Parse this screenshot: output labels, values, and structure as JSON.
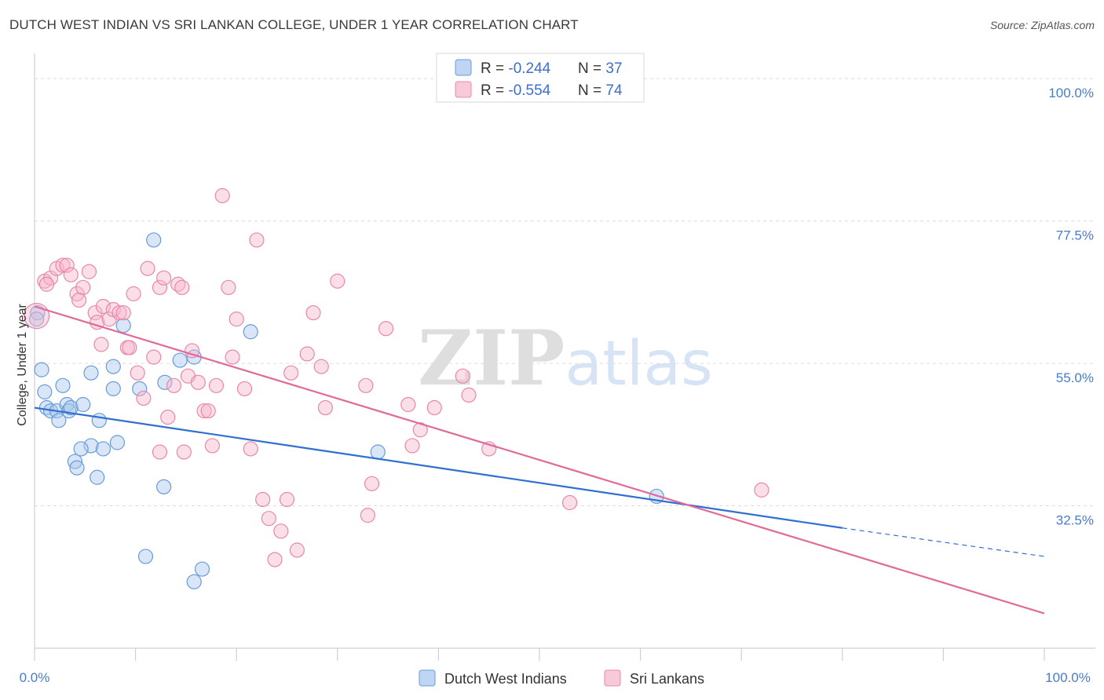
{
  "header": {
    "title": "DUTCH WEST INDIAN VS SRI LANKAN COLLEGE, UNDER 1 YEAR CORRELATION CHART",
    "source": "Source: ZipAtlas.com"
  },
  "chart_data": {
    "type": "scatter",
    "title": "DUTCH WEST INDIAN VS SRI LANKAN COLLEGE, UNDER 1 YEAR CORRELATION CHART",
    "xlabel": "",
    "ylabel": "College, Under 1 year",
    "xlim": [
      0,
      100
    ],
    "ylim": [
      10,
      102.5
    ],
    "x_tick_labels": [
      "0.0%",
      "100.0%"
    ],
    "y_ticks": [
      {
        "value": 100.0,
        "label": "100.0%"
      },
      {
        "value": 77.5,
        "label": "77.5%"
      },
      {
        "value": 55.0,
        "label": "55.0%"
      },
      {
        "value": 32.5,
        "label": "32.5%"
      }
    ],
    "grid": true,
    "watermark": "ZIPatlas",
    "legend_top": [
      {
        "r_label": "R = ",
        "r_value": "-0.244",
        "n_label": "N = ",
        "n_value": "37",
        "color": "#a8c8f0"
      },
      {
        "r_label": "R = ",
        "r_value": "-0.554",
        "n_label": "N = ",
        "n_value": "74",
        "color": "#f6b8cc"
      }
    ],
    "series": [
      {
        "name": "Dutch West Indians",
        "color": "#a8c8f0",
        "stroke": "#6a9bd8",
        "line_color": "#2f6fd0",
        "trend": {
          "x0": 0,
          "y0": 48.0,
          "x1": 80,
          "y1": 29.0,
          "dash_to_x": 100,
          "dash_to_y": 24.5
        },
        "points": [
          [
            0.3,
            63.0
          ],
          [
            0.7,
            54.0
          ],
          [
            1.0,
            50.5
          ],
          [
            1.2,
            48.0
          ],
          [
            1.6,
            47.5
          ],
          [
            2.2,
            47.5
          ],
          [
            2.4,
            46.0
          ],
          [
            2.8,
            51.5
          ],
          [
            3.2,
            48.5
          ],
          [
            3.4,
            47.5
          ],
          [
            3.6,
            48.0
          ],
          [
            4.8,
            48.5
          ],
          [
            5.6,
            53.5
          ],
          [
            6.4,
            46.0
          ],
          [
            5.6,
            42.0
          ],
          [
            4.6,
            41.5
          ],
          [
            6.8,
            41.5
          ],
          [
            8.2,
            42.5
          ],
          [
            4.0,
            39.5
          ],
          [
            4.2,
            38.5
          ],
          [
            6.2,
            37.0
          ],
          [
            7.8,
            51.0
          ],
          [
            7.8,
            54.5
          ],
          [
            8.8,
            61.0
          ],
          [
            10.4,
            51.0
          ],
          [
            11.8,
            74.5
          ],
          [
            12.9,
            52.0
          ],
          [
            14.4,
            55.5
          ],
          [
            15.8,
            56.0
          ],
          [
            21.4,
            60.0
          ],
          [
            12.8,
            35.5
          ],
          [
            11.0,
            24.5
          ],
          [
            16.6,
            22.5
          ],
          [
            15.8,
            20.5
          ],
          [
            34.0,
            41.0
          ],
          [
            61.6,
            34.0
          ],
          [
            0.2,
            62.0
          ]
        ]
      },
      {
        "name": "Sri Lankans",
        "color": "#f6b8cc",
        "stroke": "#e888a8",
        "line_color": "#e06a98",
        "trend": {
          "x0": 0,
          "y0": 64.0,
          "x1": 100,
          "y1": 15.5
        },
        "points": [
          [
            0.2,
            62.5
          ],
          [
            1.0,
            68.0
          ],
          [
            1.6,
            68.5
          ],
          [
            2.2,
            70.0
          ],
          [
            2.8,
            70.5
          ],
          [
            3.2,
            70.5
          ],
          [
            3.6,
            69.0
          ],
          [
            4.2,
            66.0
          ],
          [
            4.4,
            65.0
          ],
          [
            4.8,
            67.0
          ],
          [
            5.4,
            69.5
          ],
          [
            6.0,
            63.0
          ],
          [
            6.2,
            61.5
          ],
          [
            6.6,
            58.0
          ],
          [
            6.8,
            64.0
          ],
          [
            7.4,
            62.0
          ],
          [
            7.8,
            63.5
          ],
          [
            8.4,
            63.0
          ],
          [
            8.8,
            63.0
          ],
          [
            9.2,
            57.5
          ],
          [
            9.8,
            66.0
          ],
          [
            10.2,
            53.5
          ],
          [
            10.8,
            49.5
          ],
          [
            11.2,
            70.0
          ],
          [
            11.8,
            56.0
          ],
          [
            12.4,
            67.0
          ],
          [
            12.8,
            68.5
          ],
          [
            13.2,
            46.5
          ],
          [
            13.8,
            51.5
          ],
          [
            14.2,
            67.5
          ],
          [
            14.6,
            67.0
          ],
          [
            15.2,
            53.0
          ],
          [
            15.6,
            57.0
          ],
          [
            16.2,
            52.0
          ],
          [
            16.8,
            47.5
          ],
          [
            17.2,
            47.5
          ],
          [
            17.6,
            42.0
          ],
          [
            18.0,
            51.5
          ],
          [
            18.6,
            81.5
          ],
          [
            19.2,
            67.0
          ],
          [
            19.6,
            56.0
          ],
          [
            20.0,
            62.0
          ],
          [
            20.8,
            51.0
          ],
          [
            21.4,
            41.5
          ],
          [
            22.0,
            74.5
          ],
          [
            22.6,
            33.5
          ],
          [
            23.2,
            30.5
          ],
          [
            23.8,
            24.0
          ],
          [
            24.4,
            28.5
          ],
          [
            25.0,
            33.5
          ],
          [
            25.4,
            53.5
          ],
          [
            26.0,
            25.5
          ],
          [
            27.0,
            56.5
          ],
          [
            27.6,
            63.0
          ],
          [
            28.4,
            54.5
          ],
          [
            28.8,
            48.0
          ],
          [
            30.0,
            68.0
          ],
          [
            32.8,
            51.5
          ],
          [
            33.0,
            31.0
          ],
          [
            33.4,
            36.0
          ],
          [
            34.8,
            60.5
          ],
          [
            37.0,
            48.5
          ],
          [
            37.4,
            42.0
          ],
          [
            38.2,
            44.5
          ],
          [
            39.6,
            48.0
          ],
          [
            42.4,
            53.0
          ],
          [
            43.0,
            50.0
          ],
          [
            45.0,
            41.5
          ],
          [
            53.0,
            33.0
          ],
          [
            72.0,
            35.0
          ],
          [
            1.2,
            67.5
          ],
          [
            9.4,
            57.5
          ],
          [
            14.8,
            41.0
          ],
          [
            12.4,
            41.0
          ]
        ]
      }
    ]
  },
  "legend_bottom": [
    {
      "label": "Dutch West Indians",
      "color": "#a8c8f0"
    },
    {
      "label": "Sri Lankans",
      "color": "#f6b8cc"
    }
  ]
}
